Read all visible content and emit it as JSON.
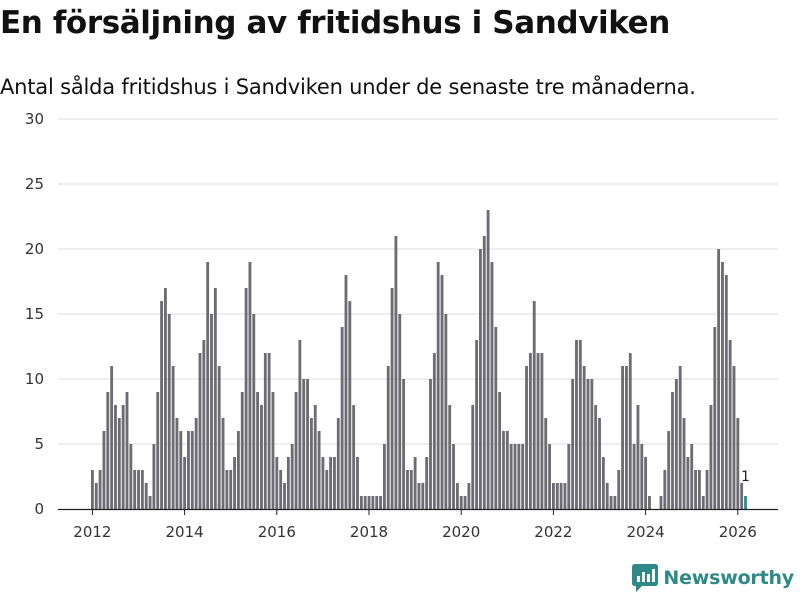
{
  "header": {
    "title": "En försäljning av fritidshus i Sandviken",
    "subtitle": "Antal sålda fritidshus i Sandviken under de senaste tre månaderna."
  },
  "branding": {
    "name": "Newsworthy"
  },
  "colors": {
    "bar": "#6d6c72",
    "highlight": "#21948f",
    "grid": "#dddddd",
    "brand": "#2f8a87"
  },
  "chart_data": {
    "type": "bar",
    "title": "En försäljning av fritidshus i Sandviken",
    "subtitle": "Antal sålda fritidshus i Sandviken under de senaste tre månaderna.",
    "xlabel": "",
    "ylabel": "",
    "ylim": [
      0,
      30
    ],
    "y_ticks": [
      0,
      5,
      10,
      15,
      20,
      25,
      30
    ],
    "x_ticks": [
      {
        "label": "2012",
        "x": 2012
      },
      {
        "label": "2014",
        "x": 2014
      },
      {
        "label": "2016",
        "x": 2016
      },
      {
        "label": "2018",
        "x": 2018
      },
      {
        "label": "2020",
        "x": 2020
      },
      {
        "label": "2022",
        "x": 2022
      },
      {
        "label": "2024",
        "x": 2024
      },
      {
        "label": "2026",
        "x": 2026
      }
    ],
    "x_start": 2012,
    "period": "monthly, rolling three-month totals",
    "grid": true,
    "legend": "none",
    "last_value_label": "1",
    "series": [
      {
        "name": "Antal sålda fritidshus",
        "values": [
          3,
          2,
          3,
          6,
          9,
          11,
          8,
          7,
          8,
          9,
          5,
          3,
          3,
          3,
          2,
          1,
          5,
          9,
          16,
          17,
          15,
          11,
          7,
          6,
          4,
          6,
          6,
          7,
          12,
          13,
          19,
          15,
          17,
          11,
          7,
          3,
          3,
          4,
          6,
          9,
          17,
          19,
          15,
          9,
          8,
          12,
          12,
          9,
          4,
          3,
          2,
          4,
          5,
          9,
          13,
          10,
          10,
          7,
          8,
          6,
          4,
          3,
          4,
          4,
          7,
          14,
          18,
          16,
          8,
          4,
          1,
          1,
          1,
          1,
          1,
          1,
          5,
          11,
          17,
          21,
          15,
          10,
          3,
          3,
          4,
          2,
          2,
          4,
          10,
          12,
          19,
          18,
          15,
          8,
          5,
          2,
          1,
          1,
          2,
          8,
          13,
          20,
          21,
          23,
          19,
          14,
          9,
          6,
          6,
          5,
          5,
          5,
          5,
          11,
          12,
          16,
          12,
          12,
          7,
          5,
          2,
          2,
          2,
          2,
          5,
          10,
          13,
          13,
          11,
          10,
          10,
          8,
          7,
          4,
          2,
          1,
          1,
          3,
          11,
          11,
          12,
          5,
          8,
          5,
          4,
          1,
          0,
          0,
          1,
          3,
          6,
          9,
          10,
          11,
          7,
          4,
          5,
          3,
          3,
          1,
          3,
          8,
          14,
          20,
          19,
          18,
          13,
          11,
          7,
          2,
          1
        ]
      }
    ]
  }
}
